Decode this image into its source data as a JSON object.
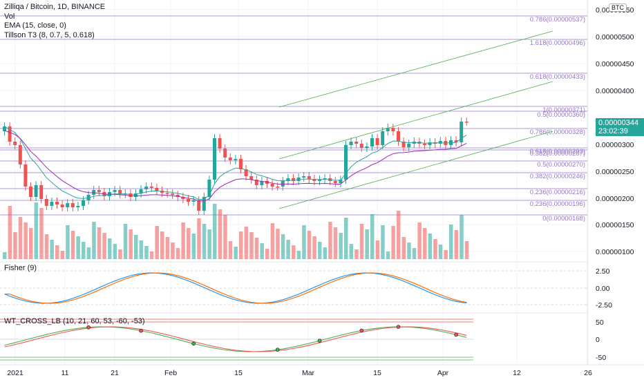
{
  "header": {
    "symbol_line": "Zilliqa / Bitcoin, 1D, BINANCE",
    "vol_label": "Vol",
    "ema_label": "EMA (15, close, 0)",
    "tillson_label": "Tillson T3 (8, 0.7, 5, 0.618)",
    "currency_badge": "BTC"
  },
  "fisher": {
    "label": "Fisher (9)",
    "ticks": [
      "2.50",
      "0.00",
      "-2.50"
    ]
  },
  "wt": {
    "label": "WT_CROSS_LB (10, 21, 60, 53, -60, -53)",
    "ticks": [
      "50",
      "0",
      "-50"
    ]
  },
  "price_axis": {
    "ticks": [
      "0.00000550",
      "0.00000500",
      "0.00000450",
      "0.00000400",
      "0.00000300",
      "0.00000250",
      "0.00000200",
      "0.00000150",
      "0.00000100"
    ],
    "last_price": "0.00000344",
    "countdown": "23:02:39"
  },
  "time_axis": {
    "ticks": [
      "2021",
      "11",
      "21",
      "Feb",
      "15",
      "Mar",
      "15",
      "Apr",
      "12",
      "26"
    ]
  },
  "fib_levels": [
    {
      "label": "0.786(0.00000537)"
    },
    {
      "label": "1.618(0.00000496)"
    },
    {
      "label": "0.618(0.00000433)"
    },
    {
      "label": "1(0.00000371)"
    },
    {
      "label": "0.5(0.00000360)"
    },
    {
      "label": "0.786(0.00000328)"
    },
    {
      "label": "0.618(0.00000293)"
    },
    {
      "label": "0.382(0.00000287)"
    },
    {
      "label": "0.5(0.00000270)"
    },
    {
      "label": "0.382(0.00000246)"
    },
    {
      "label": "0.236(0.00000216)"
    },
    {
      "label": "0.236(0.00000196)"
    },
    {
      "label": "0(0.00000168)"
    }
  ],
  "colors": {
    "up": "#26a69a",
    "down": "#ef5350",
    "fib": "#9575cd",
    "ema": "#26a69a",
    "tillson": "#9c27b0",
    "channel": "#4caf50"
  }
}
